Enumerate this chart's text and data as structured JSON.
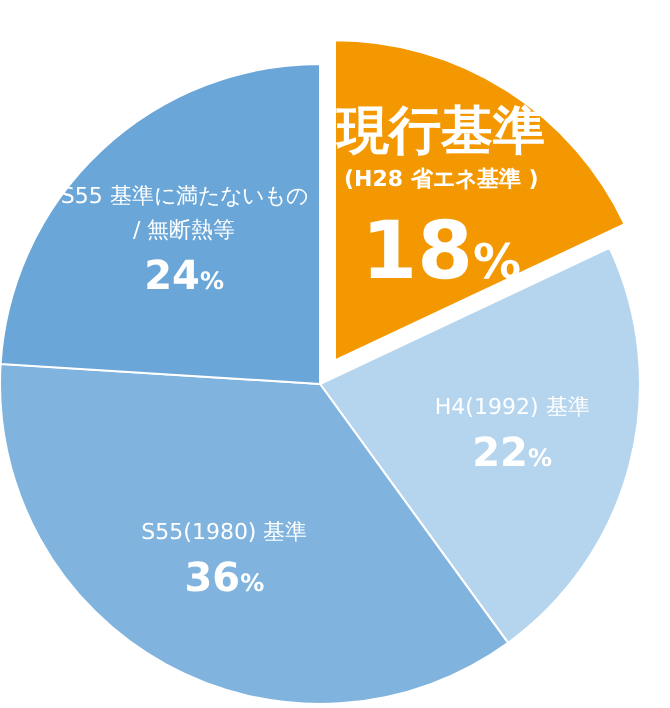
{
  "chart_data": {
    "type": "pie",
    "categories": [
      "現行基準\n(H28 省エネ基準 )",
      "H4(1992) 基準",
      "S55(1980) 基準",
      "S55 基準に満たないもの / 無断熱等"
    ],
    "values": [
      18,
      22,
      36,
      24
    ],
    "value_labels": [
      "18%",
      "22%",
      "36%",
      "24%"
    ],
    "colors": [
      "#f39800",
      "#b5d5ee",
      "#80b4de",
      "#6aa6d8"
    ]
  }
}
